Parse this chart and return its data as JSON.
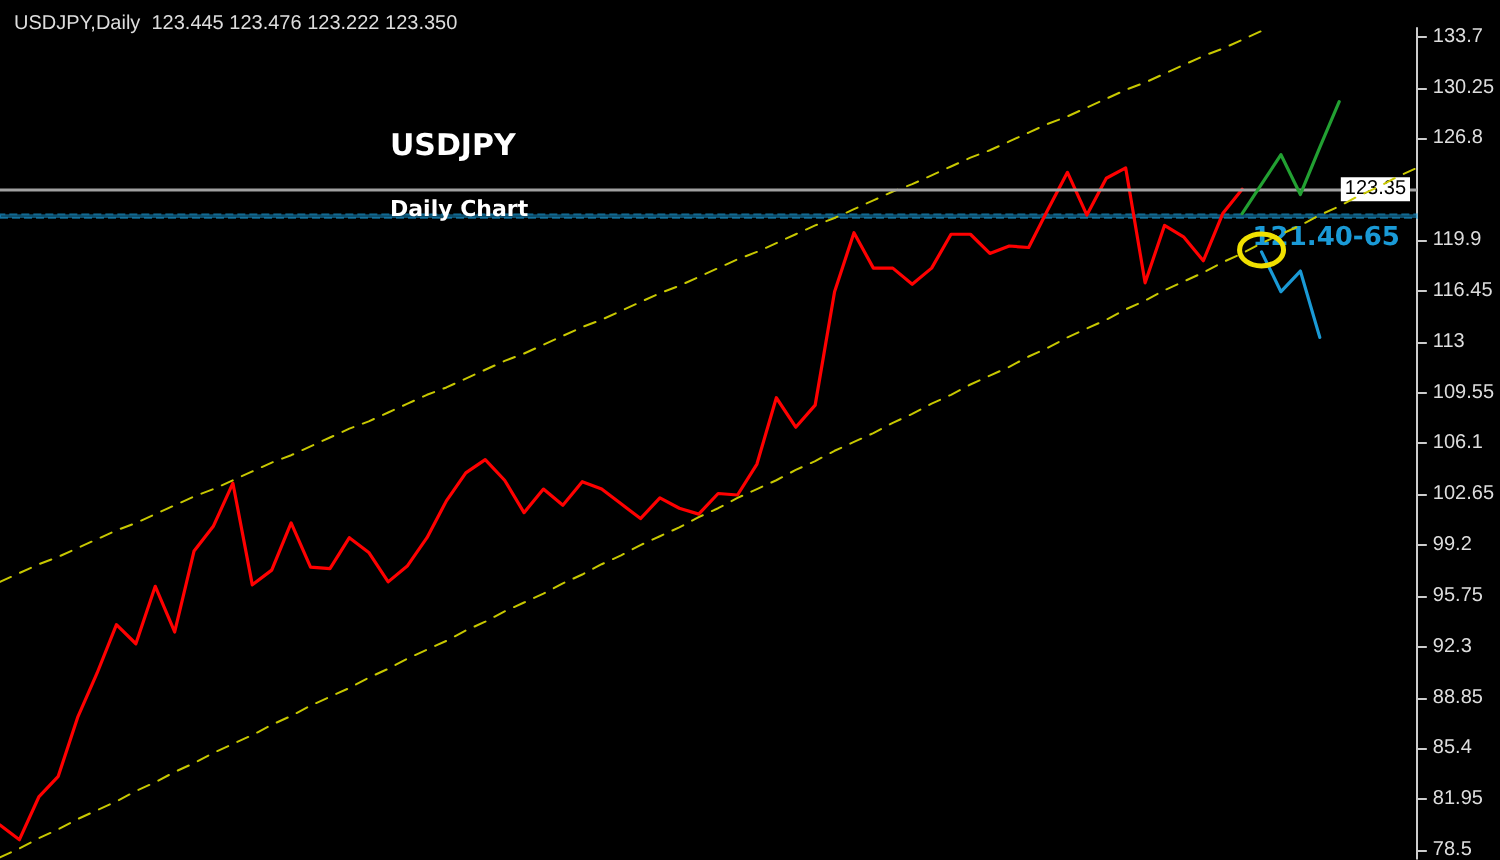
{
  "chart_data": {
    "type": "line",
    "title": "USDJPY",
    "subtitle": "Daily Chart",
    "annotations": [
      "USDJPY,Daily  123.445 123.476 123.222 123.350"
    ],
    "categories": [
      null,
      null,
      null,
      null,
      null,
      null,
      null,
      null,
      null,
      null,
      null,
      null,
      null,
      null,
      null,
      null,
      null,
      null,
      null,
      null,
      null,
      null,
      null,
      null,
      null,
      null,
      null,
      null,
      null,
      null,
      null,
      null,
      null,
      null,
      null,
      null,
      null,
      null,
      null,
      null,
      null,
      null,
      null,
      null,
      null,
      null,
      null,
      null,
      null,
      null,
      null,
      null,
      null,
      null,
      null,
      null,
      null,
      null,
      null,
      null,
      null,
      null,
      null,
      null,
      null,
      null,
      null,
      null,
      null,
      null,
      null,
      null,
      null,
      null
    ],
    "ylim": [
      77.9,
      134.3
    ],
    "yticks": [
      78.5,
      81.95,
      85.4,
      88.85,
      92.3,
      95.75,
      99.2,
      102.65,
      106.1,
      109.55,
      113,
      116.45,
      119.9,
      126.8,
      130.25,
      133.7
    ],
    "tick_labels": "y",
    "ref_lines": [
      {
        "axis": "y",
        "value": 123.35,
        "label": "123.35",
        "color": "#a0a0a0",
        "line_style": "solid"
      }
    ],
    "bands": [
      {
        "axis": "y",
        "from": 121.4,
        "to": 121.65,
        "label": "121.40-65",
        "color": "#1a9ad6"
      }
    ],
    "series": [
      {
        "color": "#ff0000",
        "values": [
          80.2,
          79.2,
          82.1,
          83.5,
          87.5,
          90.5,
          93.8,
          92.5,
          96.4,
          93.3,
          98.8,
          100.5,
          103.4,
          96.5,
          97.5,
          100.7,
          97.7,
          97.6,
          99.7,
          98.7,
          96.7,
          97.8,
          99.7,
          102.2,
          104.1,
          105.0,
          103.6,
          101.4,
          103.0,
          101.9,
          103.5,
          103.0,
          102.0,
          101.0,
          102.4,
          101.7,
          101.3,
          102.7,
          102.6,
          104.7,
          109.2,
          107.2,
          108.7,
          116.4,
          120.4,
          118.0,
          118.0,
          116.9,
          118.0,
          120.3,
          120.3,
          119.0,
          119.5,
          119.4,
          122.0,
          124.5,
          121.6,
          124.1,
          124.8,
          117.0,
          120.9,
          120.1,
          118.5,
          121.7,
          123.35,
          null,
          null,
          null,
          null,
          null,
          null,
          null,
          null,
          null
        ]
      },
      {
        "color": "#c8c800",
        "line_style": "dashed",
        "values": [
          96.7,
          97.3,
          97.9,
          98.4,
          99.0,
          99.6,
          100.2,
          100.7,
          101.3,
          101.9,
          102.5,
          103.0,
          103.6,
          104.2,
          104.8,
          105.3,
          105.9,
          106.5,
          107.1,
          107.6,
          108.2,
          108.8,
          109.4,
          109.9,
          110.5,
          111.1,
          111.7,
          112.2,
          112.8,
          113.4,
          114.0,
          114.5,
          115.1,
          115.7,
          116.3,
          116.8,
          117.4,
          118.0,
          118.6,
          119.1,
          119.7,
          120.3,
          120.9,
          121.4,
          122.0,
          122.6,
          123.2,
          123.7,
          124.3,
          124.9,
          125.5,
          126.0,
          126.6,
          127.2,
          127.8,
          128.3,
          128.9,
          129.5,
          130.1,
          130.6,
          131.2,
          131.8,
          132.4,
          132.9,
          133.5,
          134.1,
          null,
          null,
          null,
          null,
          null,
          null,
          null,
          null
        ]
      },
      {
        "color": "#c8c800",
        "line_style": "dashed",
        "values": [
          78.0,
          78.6,
          79.3,
          79.9,
          80.6,
          81.2,
          81.8,
          82.5,
          83.1,
          83.8,
          84.4,
          85.1,
          85.7,
          86.3,
          87.0,
          87.6,
          88.3,
          88.9,
          89.5,
          90.2,
          90.8,
          91.5,
          92.1,
          92.7,
          93.4,
          94.0,
          94.7,
          95.3,
          95.9,
          96.6,
          97.2,
          97.9,
          98.5,
          99.2,
          99.8,
          100.4,
          101.1,
          101.7,
          102.4,
          103.0,
          103.6,
          104.3,
          104.9,
          105.6,
          106.2,
          106.8,
          107.5,
          108.1,
          108.8,
          109.4,
          110.1,
          110.7,
          111.3,
          112.0,
          112.6,
          113.3,
          113.9,
          114.5,
          115.2,
          115.8,
          116.5,
          117.1,
          117.7,
          118.4,
          119.0,
          119.7,
          120.3,
          120.9,
          121.6,
          122.2,
          122.9,
          123.5,
          124.2,
          124.8
        ]
      },
      {
        "color": "#22a032",
        "values": [
          null,
          null,
          null,
          null,
          null,
          null,
          null,
          null,
          null,
          null,
          null,
          null,
          null,
          null,
          null,
          null,
          null,
          null,
          null,
          null,
          null,
          null,
          null,
          null,
          null,
          null,
          null,
          null,
          null,
          null,
          null,
          null,
          null,
          null,
          null,
          null,
          null,
          null,
          null,
          null,
          null,
          null,
          null,
          null,
          null,
          null,
          null,
          null,
          null,
          null,
          null,
          null,
          null,
          null,
          null,
          null,
          null,
          null,
          null,
          null,
          null,
          null,
          null,
          null,
          121.7,
          123.7,
          125.7,
          123.0,
          126.2,
          129.3,
          null,
          null,
          null,
          null
        ]
      },
      {
        "color": "#1a9ad6",
        "values": [
          null,
          null,
          null,
          null,
          null,
          null,
          null,
          null,
          null,
          null,
          null,
          null,
          null,
          null,
          null,
          null,
          null,
          null,
          null,
          null,
          null,
          null,
          null,
          null,
          null,
          null,
          null,
          null,
          null,
          null,
          null,
          null,
          null,
          null,
          null,
          null,
          null,
          null,
          null,
          null,
          null,
          null,
          null,
          null,
          null,
          null,
          null,
          null,
          null,
          null,
          null,
          null,
          null,
          null,
          null,
          null,
          null,
          null,
          null,
          null,
          null,
          null,
          null,
          null,
          null,
          119.1,
          116.4,
          117.8,
          113.3,
          null,
          null,
          null,
          null,
          null
        ]
      }
    ]
  }
}
